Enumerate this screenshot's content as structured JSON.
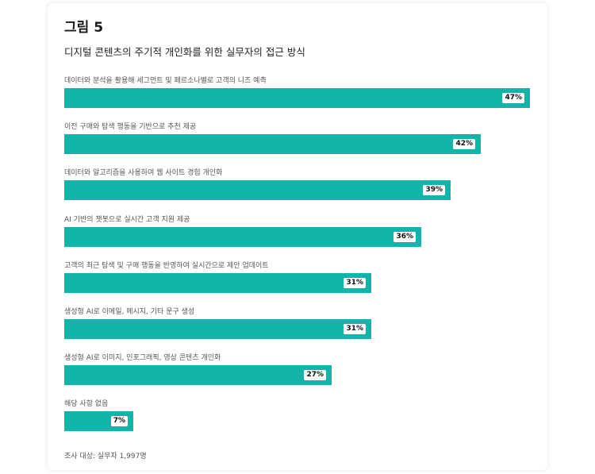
{
  "figure": {
    "title": "그림 5",
    "subtitle": "디지털 콘텐츠의 주기적 개인화를 위한 실무자의 접근 방식",
    "note": "조사 대상: 실무자 1,997명"
  },
  "chart_data": {
    "type": "bar",
    "orientation": "horizontal",
    "unit": "%",
    "xlim": [
      0,
      47
    ],
    "color": "#12b3a8",
    "categories": [
      "데이터와 분석을 활용해 세그먼트 및 페르소나별로 고객의 니즈 예측",
      "이전 구매와 탐색 행동을 기반으로 추천 제공",
      "데이터와 알고리즘을 사용하여 웹 사이트 경험 개인화",
      "AI 기반의 챗봇으로 실시간 고객 지원 제공",
      "고객의 최근 탐색 및 구매 행동을 반영하여 실시간으로 제안 업데이트",
      "생성형 AI로 이메일, 메시지, 기타 문구 생성",
      "생성형 AI로 이미지, 인포그래픽, 영상 콘텐츠 개인화",
      "해당 사항 없음"
    ],
    "values": [
      47,
      42,
      39,
      36,
      31,
      31,
      27,
      7
    ],
    "value_labels": [
      "47%",
      "42%",
      "39%",
      "36%",
      "31%",
      "31%",
      "27%",
      "7%"
    ]
  }
}
